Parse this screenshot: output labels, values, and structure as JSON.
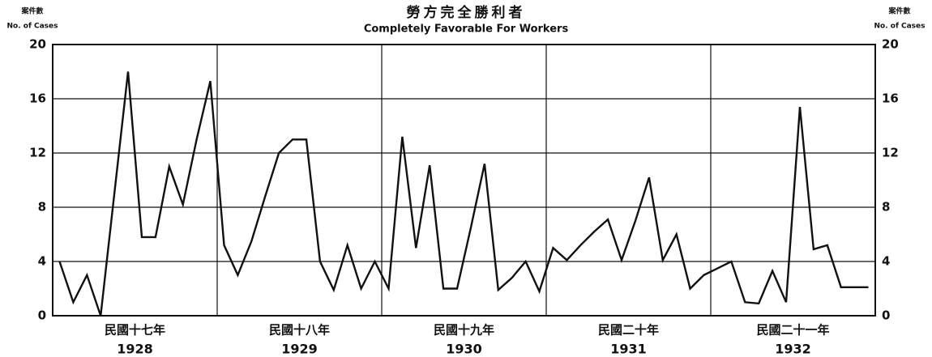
{
  "chart_data": {
    "type": "line",
    "title": "勞方完全勝利者",
    "subtitle": "Completely Favorable For Workers",
    "y_axis_label": {
      "chinese": "案件數",
      "english": "No. of Cases"
    },
    "y2_axis_label": {
      "chinese": "案件數",
      "english": "No. of Cases"
    },
    "year_groups": [
      {
        "chinese": "民國十七年",
        "year": "1928"
      },
      {
        "chinese": "民國十八年",
        "year": "1929"
      },
      {
        "chinese": "民國十九年",
        "year": "1930"
      },
      {
        "chinese": "民國二十年",
        "year": "1931"
      },
      {
        "chinese": "民國二十一年",
        "year": "1932"
      }
    ],
    "series": [
      {
        "color": "#111111",
        "values": [
          4,
          1,
          3,
          0,
          9,
          18,
          5.8,
          5.8,
          11,
          8.2,
          13,
          17.3,
          5.2,
          3,
          5.5,
          8.8,
          12,
          13,
          13,
          4,
          1.9,
          5.2,
          2,
          4,
          2,
          13.2,
          5,
          11.1,
          2,
          2,
          6.5,
          11.2,
          1.9,
          2.8,
          4,
          1.8,
          5,
          4.1,
          5.2,
          6.2,
          7.1,
          4.1,
          7,
          10.2,
          4.1,
          6,
          2,
          3,
          3.5,
          4,
          1,
          0.9,
          3.3,
          1,
          15.4,
          4.9,
          5.2,
          2.1,
          2.1,
          2.1
        ]
      }
    ],
    "ylim": [
      0,
      20
    ],
    "yticks": [
      0,
      4,
      8,
      12,
      16,
      20
    ],
    "y2lim": [
      0,
      20
    ],
    "y2ticks": [
      0,
      4,
      8,
      12,
      16,
      20
    ],
    "grid": true
  }
}
